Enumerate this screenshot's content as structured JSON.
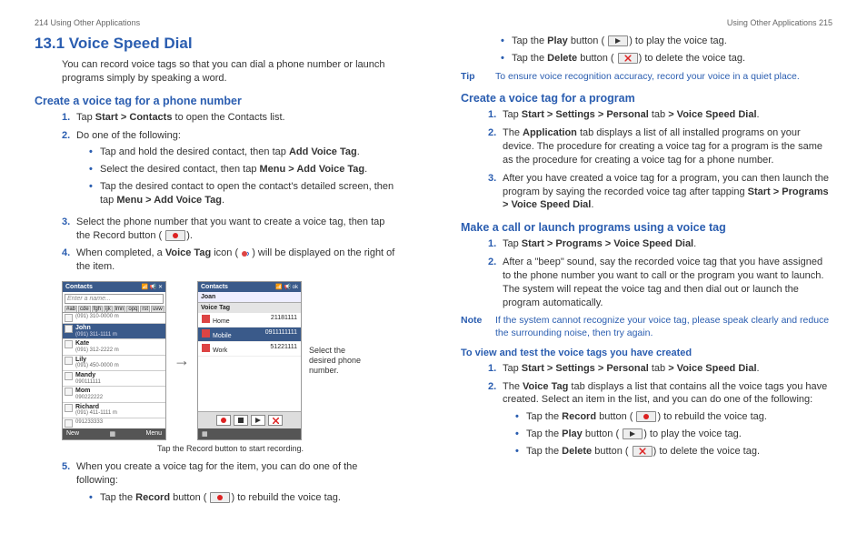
{
  "colors": {
    "accent": "#2a5db0",
    "text": "#333333"
  },
  "left": {
    "header": "214  Using Other Applications",
    "h1": "13.1  Voice Speed Dial",
    "intro": "You can record voice tags so that you can dial a phone number or launch programs simply by speaking a word.",
    "sec1_title": "Create a voice tag for a phone number",
    "steps1": {
      "s1": {
        "num": "1.",
        "pre": "Tap ",
        "bold": "Start > Contacts",
        "post": " to open the Contacts list."
      },
      "s2": {
        "num": "2.",
        "txt": "Do one of the following:"
      },
      "s2_bul": {
        "a": {
          "pre": "Tap and hold the desired contact, then tap ",
          "bold": "Add Voice Tag",
          "post": "."
        },
        "b": {
          "pre": "Select the desired contact, then tap ",
          "bold": "Menu > Add Voice Tag",
          "post": "."
        },
        "c": {
          "pre": "Tap the desired contact to open the contact's detailed screen, then tap ",
          "bold": "Menu > Add Voice Tag",
          "post": "."
        }
      },
      "s3": {
        "num": "3.",
        "txt": "Select the phone number that you want to create a voice tag, then tap the Record button (",
        "post": ")."
      },
      "s4": {
        "num": "4.",
        "pre": "When completed, a ",
        "bold": "Voice Tag",
        "post1": " icon (",
        "post2": ") will be displayed on the right of the item."
      }
    },
    "screenshot": {
      "ph1": {
        "title": "Contacts",
        "input": "Enter a name...",
        "rows": [
          {
            "nm": "",
            "sub": "(091) 310-0000   m"
          },
          {
            "nm": "John",
            "sub": "(091) 311-1111   m"
          },
          {
            "nm": "Kate",
            "sub": "(091) 312-2222   m"
          },
          {
            "nm": "Lily",
            "sub": "(091) 450-0000   m"
          },
          {
            "nm": "Mandy",
            "sub": "090111111"
          },
          {
            "nm": "Mom",
            "sub": "090222222"
          },
          {
            "nm": "Richard",
            "sub": "(091) 411-1111   m"
          },
          {
            "nm": "",
            "sub": "091233333"
          }
        ],
        "soft_l": "New",
        "soft_r": "Menu"
      },
      "ph2": {
        "title": "Contacts",
        "name": "Joan",
        "section": "Voice Tag",
        "rows": [
          {
            "lbl": "Home",
            "val": "21181111"
          },
          {
            "lbl": "Mobile",
            "val": "0911111111"
          },
          {
            "lbl": "Work",
            "val": "51221111"
          }
        ]
      },
      "side": "Select the desired phone number.",
      "caption": "Tap the Record button to start recording."
    },
    "steps_after": {
      "s5": {
        "num": "5.",
        "txt": "When you create a voice tag for the item, you can do one of the following:"
      },
      "s5_bul": {
        "a": {
          "pre": "Tap the ",
          "bold": "Record",
          "mid": " button (",
          "post": ") to rebuild the voice tag."
        }
      }
    }
  },
  "right": {
    "header": "Using Other Applications  215",
    "top_bul": {
      "a": {
        "pre": "Tap the ",
        "bold": "Play",
        "mid": " button (",
        "post": ") to play the voice tag."
      },
      "b": {
        "pre": "Tap the ",
        "bold": "Delete",
        "mid": " button (",
        "post": ") to delete the voice tag."
      }
    },
    "tip": {
      "lbl": "Tip",
      "msg": "To ensure voice recognition accuracy, record your voice in a quiet place."
    },
    "sec2_title": "Create a voice tag for a program",
    "steps2": {
      "s1": {
        "num": "1.",
        "pre": "Tap ",
        "b1": "Start > Settings > Personal",
        "mid": " tab ",
        "b2": "> Voice Speed Dial",
        "post": "."
      },
      "s2": {
        "num": "2.",
        "pre": "The ",
        "bold": "Application",
        "post": " tab displays a list of all installed programs on your device. The procedure for creating a voice tag for a program is the same as the procedure for creating a voice tag for a phone number."
      },
      "s3": {
        "num": "3.",
        "pre": "After you have created a voice tag for a program, you can then launch the program by saying the recorded voice tag after tapping ",
        "bold": "Start > Programs > Voice Speed Dial",
        "post": "."
      }
    },
    "sec3_title": "Make a call or launch programs using a voice tag",
    "steps3": {
      "s1": {
        "num": "1.",
        "pre": "Tap ",
        "bold": "Start > Programs > Voice Speed Dial",
        "post": "."
      },
      "s2": {
        "num": "2.",
        "txt": "After a \"beep\" sound, say the recorded voice tag that you have assigned to the phone number you want to call or the program you want to launch. The system will repeat the voice tag and then dial out or launch the program automatically."
      }
    },
    "note": {
      "lbl": "Note",
      "msg": "If the system cannot recognize your voice tag, please speak clearly and reduce the surrounding noise, then try again."
    },
    "sub_title": "To view and test the voice tags you have created",
    "steps4": {
      "s1": {
        "num": "1.",
        "pre": "Tap ",
        "b1": "Start > Settings > Personal",
        "mid": " tab ",
        "b2": "> Voice Speed Dial",
        "post": "."
      },
      "s2": {
        "num": "2.",
        "pre": "The ",
        "bold": "Voice Tag",
        "post": " tab displays a list that contains all the voice tags you have created. Select an item in the list, and you can do one of the following:"
      }
    },
    "steps4_bul": {
      "a": {
        "pre": "Tap the ",
        "bold": "Record",
        "mid": " button (",
        "post": ") to rebuild the voice tag."
      },
      "b": {
        "pre": "Tap the ",
        "bold": "Play",
        "mid": " button (",
        "post": ") to play the voice tag."
      },
      "c": {
        "pre": "Tap the ",
        "bold": "Delete",
        "mid": " button (",
        "post": ") to delete the voice tag."
      }
    }
  }
}
